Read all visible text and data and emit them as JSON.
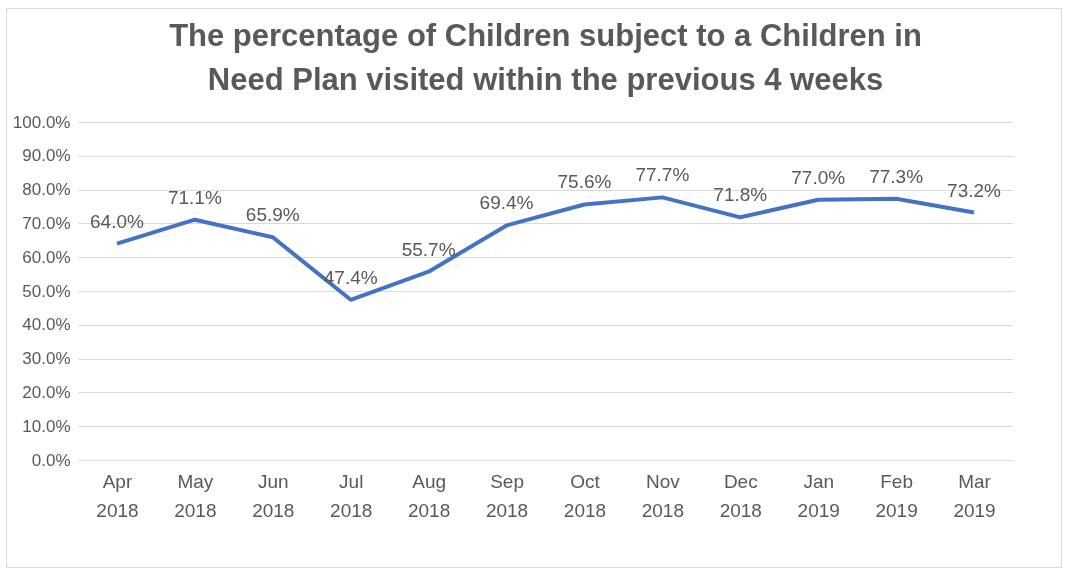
{
  "chart_data": {
    "type": "line",
    "title": "The percentage of Children subject to a Children in Need Plan visited within the previous 4 weeks",
    "categories": [
      "Apr 2018",
      "May 2018",
      "Jun 2018",
      "Jul 2018",
      "Aug 2018",
      "Sep 2018",
      "Oct 2018",
      "Nov 2018",
      "Dec 2018",
      "Jan 2019",
      "Feb 2019",
      "Mar 2019"
    ],
    "series": [
      {
        "color": "#4472c4",
        "values": [
          64.0,
          71.1,
          65.9,
          47.4,
          55.7,
          69.4,
          75.6,
          77.7,
          71.8,
          77.0,
          77.3,
          73.2
        ],
        "value_labels": [
          "64.0%",
          "71.1%",
          "65.9%",
          "47.4%",
          "55.7%",
          "69.4%",
          "75.6%",
          "77.7%",
          "71.8%",
          "77.0%",
          "77.3%",
          "73.2%"
        ]
      }
    ],
    "ylim": [
      0,
      100
    ],
    "yticks": [
      {
        "value": 0,
        "label": "0.0%"
      },
      {
        "value": 10,
        "label": "10.0%"
      },
      {
        "value": 20,
        "label": "20.0%"
      },
      {
        "value": 30,
        "label": "30.0%"
      },
      {
        "value": 40,
        "label": "40.0%"
      },
      {
        "value": 50,
        "label": "50.0%"
      },
      {
        "value": 60,
        "label": "60.0%"
      },
      {
        "value": 70,
        "label": "70.0%"
      },
      {
        "value": 80,
        "label": "80.0%"
      },
      {
        "value": 90,
        "label": "90.0%"
      },
      {
        "value": 100,
        "label": "100.0%"
      }
    ],
    "grid": "y",
    "marker": "none",
    "line_style": "solid"
  }
}
